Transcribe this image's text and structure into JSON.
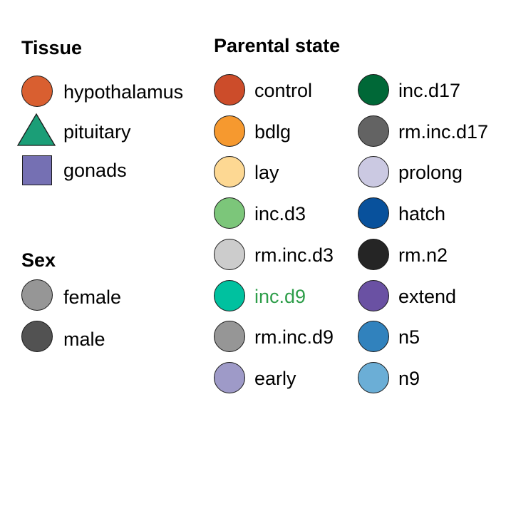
{
  "tissue": {
    "title": "Tissue",
    "items": [
      {
        "label": "hypothalamus",
        "shape": "circle-icon",
        "color": "#D95F30"
      },
      {
        "label": "pituitary",
        "shape": "triangle-icon",
        "color": "#1B9E77"
      },
      {
        "label": "gonads",
        "shape": "square-icon",
        "color": "#7570B3"
      }
    ]
  },
  "sex": {
    "title": "Sex",
    "items": [
      {
        "label": "female",
        "shape": "circle-icon",
        "color": "#969696"
      },
      {
        "label": "male",
        "shape": "circle-icon",
        "color": "#525252"
      }
    ]
  },
  "parental": {
    "title": "Parental state",
    "col1": [
      {
        "label": "control",
        "color": "#CC4C2A",
        "text_color": "#000000"
      },
      {
        "label": "bdlg",
        "color": "#F6992F",
        "text_color": "#000000"
      },
      {
        "label": "lay",
        "color": "#FDD893",
        "text_color": "#000000"
      },
      {
        "label": "inc.d3",
        "color": "#7CC67A",
        "text_color": "#000000"
      },
      {
        "label": "rm.inc.d3",
        "color": "#CCCCCC",
        "text_color": "#000000"
      },
      {
        "label": "inc.d9",
        "color": "#00C19F",
        "text_color": "#2E9E4A"
      },
      {
        "label": "rm.inc.d9",
        "color": "#969696",
        "text_color": "#000000"
      },
      {
        "label": "early",
        "color": "#9E9AC8",
        "text_color": "#000000"
      }
    ],
    "col2": [
      {
        "label": "inc.d17",
        "color": "#006837",
        "text_color": "#000000"
      },
      {
        "label": "rm.inc.d17",
        "color": "#636363",
        "text_color": "#000000"
      },
      {
        "label": "prolong",
        "color": "#CBC9E2",
        "text_color": "#000000"
      },
      {
        "label": "hatch",
        "color": "#08519C",
        "text_color": "#000000"
      },
      {
        "label": "rm.n2",
        "color": "#252525",
        "text_color": "#000000"
      },
      {
        "label": "extend",
        "color": "#6A51A3",
        "text_color": "#000000"
      },
      {
        "label": "n5",
        "color": "#3182BD",
        "text_color": "#000000"
      },
      {
        "label": "n9",
        "color": "#6BAED6",
        "text_color": "#000000"
      }
    ]
  }
}
